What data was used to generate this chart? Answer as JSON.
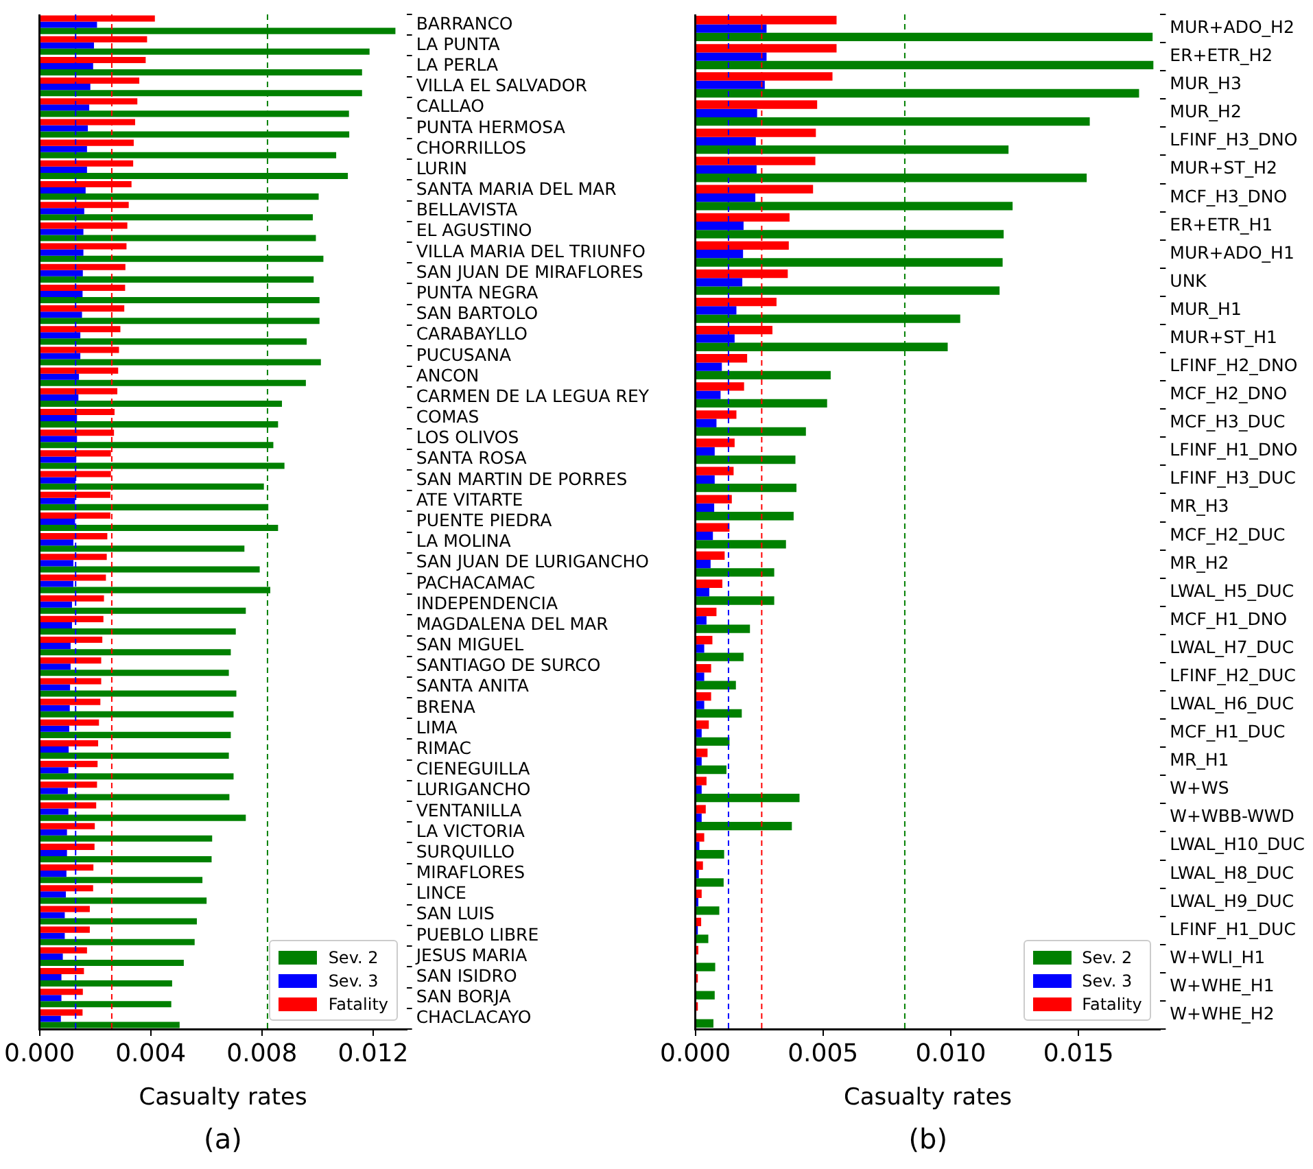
{
  "chart_data": [
    {
      "type": "bar",
      "orientation": "horizontal",
      "xlabel": "Casualty rates",
      "annotations": [
        "(a)"
      ],
      "legend": "bottom right",
      "grid": false,
      "categories": [
        "BARRANCO",
        "LA PUNTA",
        "LA PERLA",
        "VILLA EL SALVADOR",
        "CALLAO",
        "PUNTA HERMOSA",
        "CHORRILLOS",
        "LURIN",
        "SANTA MARIA DEL MAR",
        "BELLAVISTA",
        "EL AGUSTINO",
        "VILLA MARIA DEL TRIUNFO",
        "SAN JUAN DE MIRAFLORES",
        "PUNTA NEGRA",
        "SAN BARTOLO",
        "CARABAYLLO",
        "PUCUSANA",
        "ANCON",
        "CARMEN DE LA LEGUA REY",
        "COMAS",
        "LOS OLIVOS",
        "SANTA ROSA",
        "SAN MARTIN DE PORRES",
        "ATE VITARTE",
        "PUENTE PIEDRA",
        "LA MOLINA",
        "SAN JUAN DE LURIGANCHO",
        "PACHACAMAC",
        "INDEPENDENCIA",
        "MAGDALENA DEL MAR",
        "SAN MIGUEL",
        "SANTIAGO DE SURCO",
        "SANTA ANITA",
        "BRENA",
        "LIMA",
        "RIMAC",
        "CIENEGUILLA",
        "LURIGANCHO",
        "VENTANILLA",
        "LA VICTORIA",
        "SURQUILLO",
        "MIRAFLORES",
        "LINCE",
        "SAN LUIS",
        "PUEBLO LIBRE",
        "JESUS MARIA",
        "SAN ISIDRO",
        "SAN BORJA",
        "CHACLACAYO"
      ],
      "series": [
        {
          "name": "Sev. 2",
          "color": "#008000",
          "values": [
            0.0128,
            0.01187,
            0.0116,
            0.0116,
            0.01113,
            0.01114,
            0.01067,
            0.01109,
            0.01004,
            0.00983,
            0.00994,
            0.01021,
            0.00986,
            0.01007,
            0.01007,
            0.00961,
            0.01012,
            0.00958,
            0.00872,
            0.00858,
            0.00841,
            0.00881,
            0.00807,
            0.00823,
            0.00858,
            0.00737,
            0.00792,
            0.0083,
            0.00742,
            0.00706,
            0.00688,
            0.00681,
            0.00708,
            0.00698,
            0.00688,
            0.00681,
            0.00698,
            0.00683,
            0.00742,
            0.00621,
            0.00619,
            0.00586,
            0.00601,
            0.00566,
            0.00558,
            0.00519,
            0.00477,
            0.00474,
            0.00504
          ]
        },
        {
          "name": "Sev. 3",
          "color": "#0000ff",
          "values": [
            0.00207,
            0.00196,
            0.00193,
            0.00183,
            0.00179,
            0.00174,
            0.00171,
            0.00171,
            0.00166,
            0.00161,
            0.00158,
            0.00158,
            0.00156,
            0.00155,
            0.00153,
            0.00147,
            0.00147,
            0.00142,
            0.0014,
            0.00135,
            0.00135,
            0.00132,
            0.0013,
            0.00128,
            0.00128,
            0.00122,
            0.00122,
            0.00122,
            0.00117,
            0.00117,
            0.00112,
            0.00112,
            0.0011,
            0.00109,
            0.00107,
            0.00105,
            0.00104,
            0.00102,
            0.00104,
            0.00099,
            0.00099,
            0.00097,
            0.00095,
            0.00091,
            0.00091,
            0.00084,
            0.00079,
            0.00079,
            0.00077
          ]
        },
        {
          "name": "Fatality",
          "color": "#ff0000",
          "values": [
            0.00415,
            0.00387,
            0.00382,
            0.00359,
            0.00352,
            0.00344,
            0.00339,
            0.00337,
            0.00331,
            0.00321,
            0.00316,
            0.00313,
            0.00309,
            0.00308,
            0.00305,
            0.00291,
            0.00286,
            0.00283,
            0.0028,
            0.0027,
            0.00268,
            0.00257,
            0.00257,
            0.00255,
            0.00255,
            0.00244,
            0.00242,
            0.00239,
            0.00232,
            0.0023,
            0.00226,
            0.00222,
            0.00222,
            0.00219,
            0.00214,
            0.00211,
            0.00209,
            0.00207,
            0.00204,
            0.00199,
            0.00198,
            0.00194,
            0.00193,
            0.00181,
            0.00181,
            0.00171,
            0.0016,
            0.00156,
            0.00155
          ]
        }
      ],
      "xlim": [
        0,
        0.0132
      ],
      "xticks": [
        {
          "value": 0,
          "label": "0.000"
        },
        {
          "value": 0.004,
          "label": "0.004"
        },
        {
          "value": 0.008,
          "label": "0.008"
        },
        {
          "value": 0.012,
          "label": "0.012"
        }
      ],
      "ref_lines": [
        {
          "axis": "x",
          "value": 0.0013,
          "color": "#0000ff",
          "line_style": "dashed"
        },
        {
          "axis": "x",
          "value": 0.0026,
          "color": "#ff0000",
          "line_style": "dashed"
        },
        {
          "axis": "x",
          "value": 0.0082,
          "color": "#008000",
          "line_style": "dashed"
        }
      ]
    },
    {
      "type": "bar",
      "orientation": "horizontal",
      "xlabel": "Casualty rates",
      "annotations": [
        "(b)"
      ],
      "legend": "bottom right",
      "grid": false,
      "categories": [
        "MUR+ADO_H2",
        "ER+ETR_H2",
        "MUR_H3",
        "MUR_H2",
        "LFINF_H3_DNO",
        "MUR+ST_H2",
        "MCF_H3_DNO",
        "ER+ETR_H1",
        "MUR+ADO_H1",
        "UNK",
        "MUR_H1",
        "MUR+ST_H1",
        "LFINF_H2_DNO",
        "MCF_H2_DNO",
        "MCF_H3_DUC",
        "LFINF_H1_DNO",
        "LFINF_H3_DUC",
        "MR_H3",
        "MCF_H2_DUC",
        "MR_H2",
        "LWAL_H5_DUC",
        "MCF_H1_DNO",
        "LWAL_H7_DUC",
        "LFINF_H2_DUC",
        "LWAL_H6_DUC",
        "MCF_H1_DUC",
        "MR_H1",
        "W+WS",
        "W+WBB-WWD",
        "LWAL_H10_DUC",
        "LWAL_H8_DUC",
        "LWAL_H9_DUC",
        "LFINF_H1_DUC",
        "W+WLI_H1",
        "W+WHE_H1",
        "W+WHE_H2"
      ],
      "series": [
        {
          "name": "Sev. 2",
          "color": "#008000",
          "values": [
            0.0179,
            0.01793,
            0.01737,
            0.01544,
            0.01226,
            0.01532,
            0.01242,
            0.01207,
            0.01203,
            0.01191,
            0.01037,
            0.00988,
            0.0053,
            0.00516,
            0.00433,
            0.00392,
            0.00396,
            0.00385,
            0.00355,
            0.00309,
            0.00309,
            0.00214,
            0.00189,
            0.00159,
            0.00182,
            0.00134,
            0.00122,
            0.00408,
            0.00378,
            0.00113,
            0.00111,
            0.00094,
            0.00051,
            0.00078,
            0.00076,
            0.00071
          ]
        },
        {
          "name": "Sev. 3",
          "color": "#0000ff",
          "values": [
            0.00279,
            0.00279,
            0.00272,
            0.00242,
            0.00237,
            0.0024,
            0.00235,
            0.00189,
            0.00187,
            0.00184,
            0.00161,
            0.00154,
            0.00104,
            0.00099,
            0.00083,
            0.00076,
            0.00076,
            0.00074,
            0.00069,
            0.0006,
            0.00055,
            0.00044,
            0.00035,
            0.00035,
            0.00035,
            0.00025,
            0.00025,
            0.00025,
            0.00025,
            0.00016,
            0.00014,
            0.00012,
            0.0001,
            null,
            null,
            null
          ]
        },
        {
          "name": "Fatality",
          "color": "#ff0000",
          "values": [
            0.00553,
            0.00553,
            0.00537,
            0.00477,
            0.00472,
            0.0047,
            0.00461,
            0.00369,
            0.00366,
            0.00362,
            0.00318,
            0.00302,
            0.00203,
            0.00191,
            0.00161,
            0.00154,
            0.0015,
            0.00143,
            0.00134,
            0.00115,
            0.00106,
            0.00083,
            0.00067,
            0.00062,
            0.00062,
            0.00053,
            0.00048,
            0.00044,
            0.00041,
            0.00035,
            0.0003,
            0.00025,
            0.00023,
            0.00012,
            0.0001,
            0.0001
          ]
        }
      ],
      "xlim": [
        0,
        0.0182
      ],
      "xticks": [
        {
          "value": 0,
          "label": "0.000"
        },
        {
          "value": 0.005,
          "label": "0.005"
        },
        {
          "value": 0.01,
          "label": "0.010"
        },
        {
          "value": 0.015,
          "label": "0.015"
        }
      ],
      "ref_lines": [
        {
          "axis": "x",
          "value": 0.0013,
          "color": "#0000ff",
          "line_style": "dashed"
        },
        {
          "axis": "x",
          "value": 0.0026,
          "color": "#ff0000",
          "line_style": "dashed"
        },
        {
          "axis": "x",
          "value": 0.0082,
          "color": "#008000",
          "line_style": "dashed"
        }
      ]
    }
  ]
}
